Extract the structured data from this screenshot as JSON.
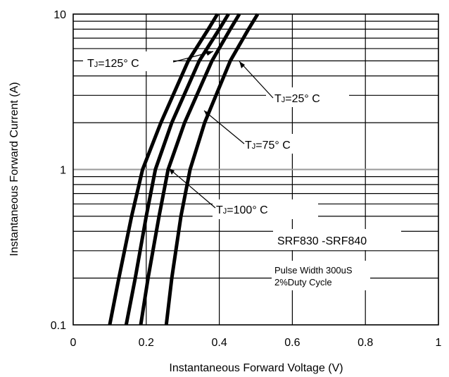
{
  "chart_data": {
    "type": "line",
    "title": "",
    "xlabel": "Instantaneous Forward Voltage (V)",
    "ylabel": "Instantaneous Forward Current (A)",
    "xlim": [
      0,
      1
    ],
    "ylim": [
      0.1,
      10
    ],
    "yscale": "log",
    "grid": true,
    "x_ticks": [
      "0",
      "0.2",
      "0.4",
      "0.6",
      "0.8",
      "1"
    ],
    "y_ticks": [
      "0.1",
      "1",
      "10"
    ],
    "series": [
      {
        "name": "TJ=125° C",
        "points": [
          [
            0.1,
            0.1
          ],
          [
            0.125,
            0.2
          ],
          [
            0.16,
            0.5
          ],
          [
            0.19,
            1
          ],
          [
            0.24,
            2
          ],
          [
            0.315,
            5
          ],
          [
            0.37,
            8
          ],
          [
            0.395,
            10
          ]
        ]
      },
      {
        "name": "TJ=100° C",
        "points": [
          [
            0.145,
            0.1
          ],
          [
            0.17,
            0.2
          ],
          [
            0.2,
            0.5
          ],
          [
            0.225,
            1
          ],
          [
            0.27,
            2
          ],
          [
            0.345,
            5
          ],
          [
            0.4,
            8
          ],
          [
            0.425,
            10
          ]
        ]
      },
      {
        "name": "TJ=75° C",
        "points": [
          [
            0.185,
            0.1
          ],
          [
            0.205,
            0.2
          ],
          [
            0.235,
            0.5
          ],
          [
            0.26,
            1
          ],
          [
            0.305,
            2
          ],
          [
            0.38,
            5
          ],
          [
            0.43,
            8
          ],
          [
            0.455,
            10
          ]
        ]
      },
      {
        "name": "TJ=25° C",
        "points": [
          [
            0.255,
            0.1
          ],
          [
            0.27,
            0.2
          ],
          [
            0.295,
            0.5
          ],
          [
            0.32,
            1
          ],
          [
            0.36,
            2
          ],
          [
            0.43,
            5
          ],
          [
            0.48,
            8
          ],
          [
            0.505,
            10
          ]
        ]
      }
    ],
    "annotations": [
      {
        "prefix": "T",
        "sub": "J",
        "rest": "=125° C"
      },
      {
        "prefix": "T",
        "sub": "J",
        "rest": "=25° C"
      },
      {
        "prefix": "T",
        "sub": "J",
        "rest": "=75° C"
      },
      {
        "prefix": "T",
        "sub": "J",
        "rest": "=100° C"
      }
    ],
    "part_number": "SRF830 -SRF840",
    "note_lines": [
      "Pulse Width 300uS",
      "2%Duty Cycle"
    ]
  }
}
